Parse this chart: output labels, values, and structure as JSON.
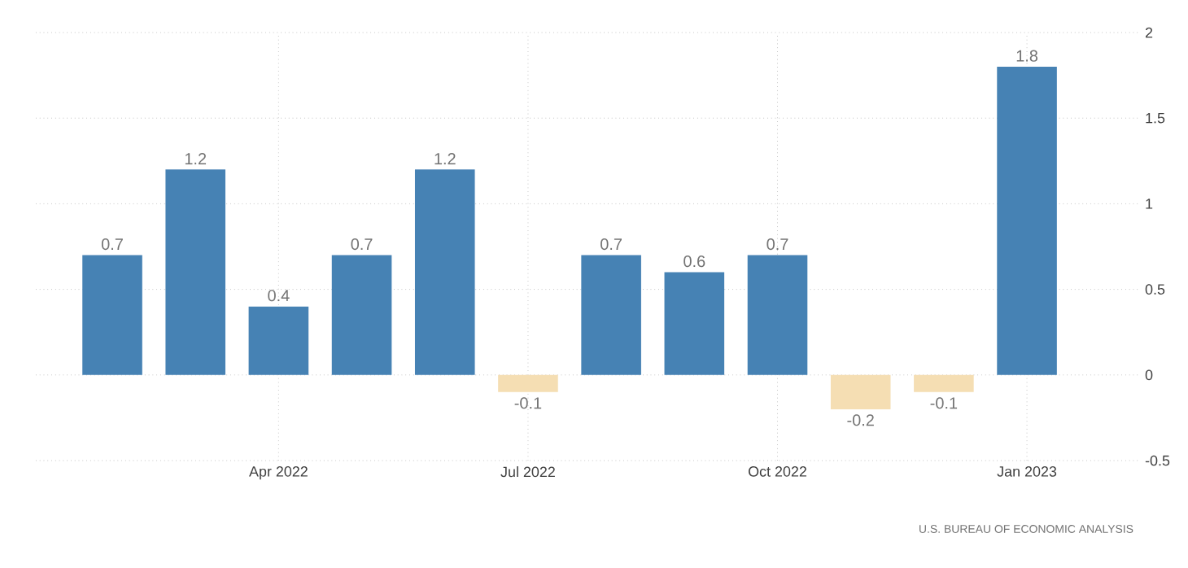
{
  "chart_data": {
    "type": "bar",
    "categories": [
      null,
      null,
      "Apr 2022",
      null,
      null,
      "Jul 2022",
      null,
      null,
      "Oct 2022",
      null,
      null,
      "Jan 2023"
    ],
    "values": [
      0.7,
      1.2,
      0.4,
      0.7,
      1.2,
      -0.1,
      0.7,
      0.6,
      0.7,
      -0.2,
      -0.1,
      1.8
    ],
    "colors": [
      "#4682b4",
      "#4682b4",
      "#4682b4",
      "#4682b4",
      "#4682b4",
      "#f5deb3",
      "#4682b4",
      "#4682b4",
      "#4682b4",
      "#f5deb3",
      "#f5deb3",
      "#4682b4"
    ],
    "ylim": [
      -0.5,
      2
    ],
    "yticks": [
      -0.5,
      0,
      0.5,
      1,
      1.5,
      2
    ],
    "grid": true,
    "data_labels": true,
    "annotations": [
      "U.S. BUREAU OF ECONOMIC ANALYSIS"
    ]
  }
}
